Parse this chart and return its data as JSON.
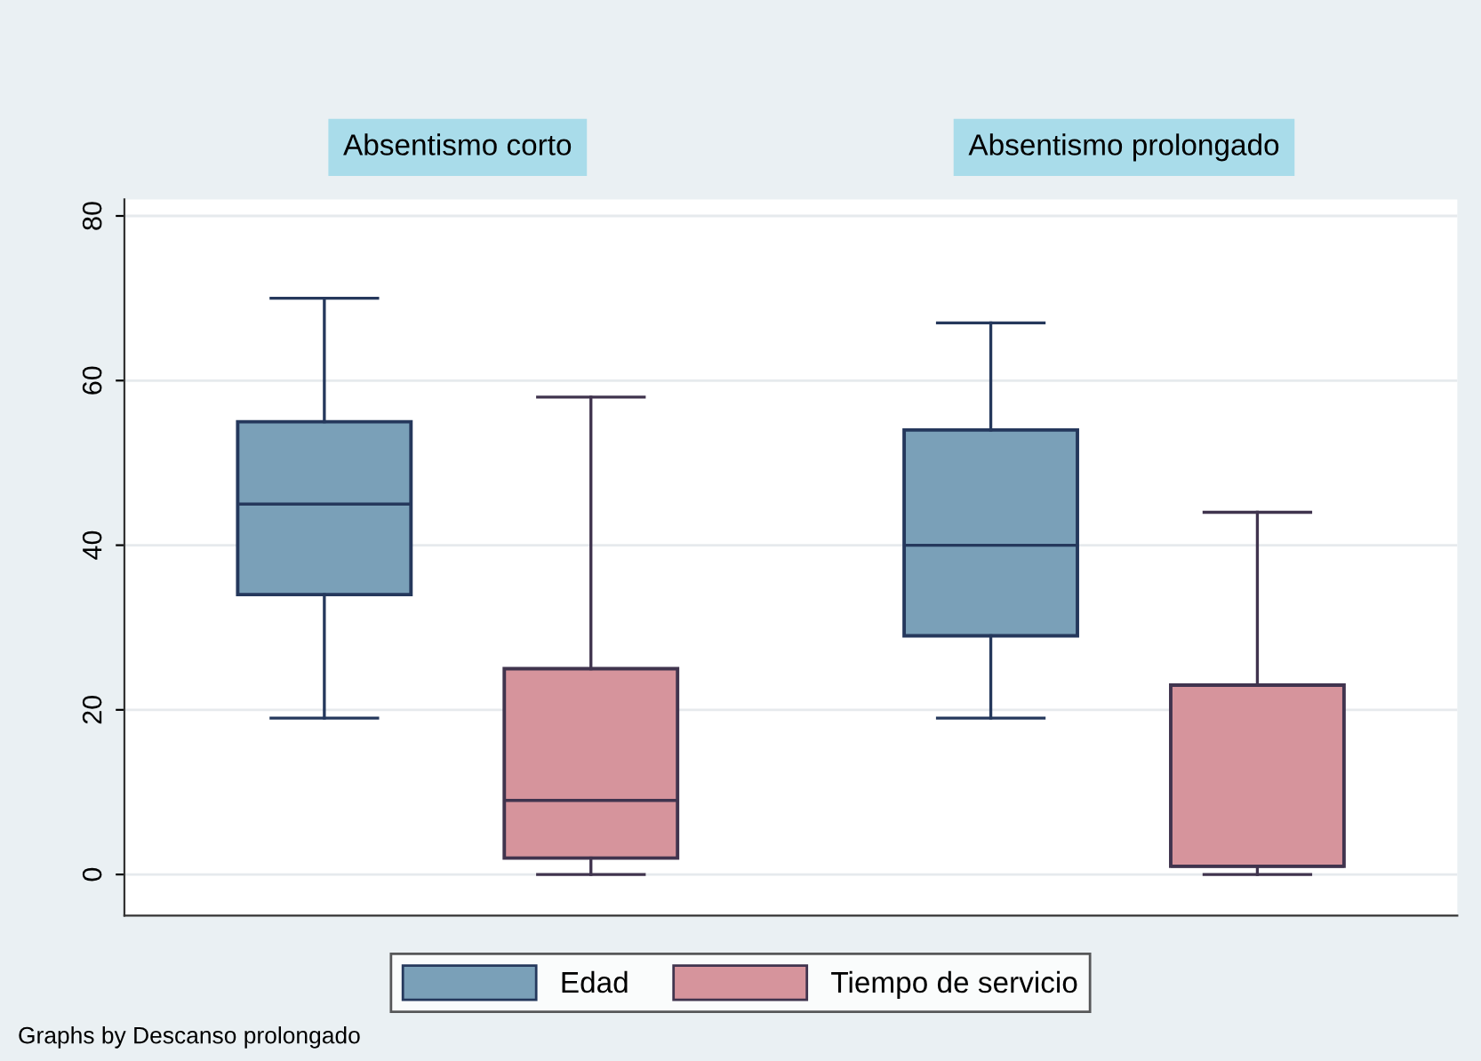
{
  "chart_data": {
    "type": "box",
    "categories": [
      "Absentismo corto",
      "Absentismo prolongado"
    ],
    "ylim": [
      -5,
      82
    ],
    "yticks": [
      0,
      20,
      40,
      60,
      80
    ],
    "grid": "y",
    "legend": "bottom",
    "annotations": [
      "Graphs by Descanso prolongado"
    ],
    "series": [
      {
        "name": "Edad",
        "color": "#7aa0b8",
        "boxes": [
          {
            "low": 19,
            "q1": 34,
            "median": 45,
            "q3": 55,
            "high": 70
          },
          {
            "low": 19,
            "q1": 29,
            "median": 40,
            "q3": 54,
            "high": 67
          }
        ]
      },
      {
        "name": "Tiempo de servicio",
        "color": "#d6949c",
        "boxes": [
          {
            "low": 0,
            "q1": 2,
            "median": 9,
            "q3": 25,
            "high": 58
          },
          {
            "low": 0,
            "q1": 1,
            "median": 1,
            "q3": 23,
            "high": 44
          }
        ]
      }
    ]
  }
}
